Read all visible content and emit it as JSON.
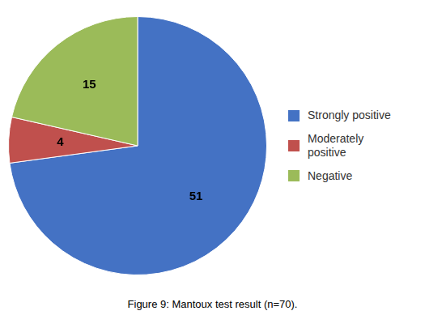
{
  "chart_data": {
    "type": "pie",
    "title": "Figure 9: Mantoux test result (n=70).",
    "categories": [
      "Strongly positive",
      "Moderately\npositive",
      "Negative"
    ],
    "values": [
      51,
      4,
      15
    ],
    "colors": [
      "#4472C4",
      "#C0504D",
      "#9BBB59"
    ],
    "data_labels": true,
    "legend": "right"
  }
}
